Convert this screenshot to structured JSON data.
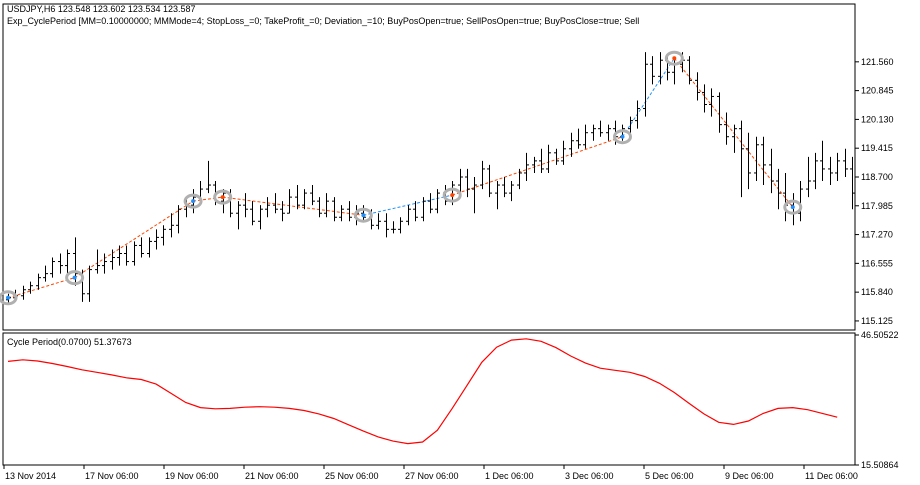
{
  "header": {
    "symbol_line": "USDJPY,H6  123.548 123.602 123.534 123.587",
    "expert_line": "Exp_CyclePeriod [MM=0.10000000; MMMode=4; StopLoss_=0; TakeProfit_=0; Deviation_=10; BuyPosOpen=true; SellPosOpen=true; BuyPosClose=true; Sell"
  },
  "indicator": {
    "label": "Cycle Period(0.0700) 51.37673"
  },
  "colors": {
    "candle": "#000000",
    "cycle_line": "#ff0000",
    "trade_sell_line": "#ff4500",
    "trade_buy_line": "#1e90ff",
    "marker_ring": "#b0b0b0",
    "frame": "#000000"
  },
  "chart_data": [
    {
      "type": "candlestick",
      "title": "USDJPY,H6",
      "ylim": [
        114.9,
        122.4
      ],
      "y_tick_labels": [
        "121.560",
        "120.845",
        "120.130",
        "119.415",
        "118.700",
        "117.985",
        "117.270",
        "116.555",
        "115.840",
        "115.125"
      ],
      "y_ticks": [
        121.56,
        120.845,
        120.13,
        119.415,
        118.7,
        117.985,
        117.27,
        116.555,
        115.84,
        115.125
      ],
      "x_tick_labels": [
        "13 Nov 2014",
        "17 Nov 06:00",
        "19 Nov 06:00",
        "21 Nov 06:00",
        "25 Nov 06:00",
        "27 Nov 06:00",
        "1 Dec 06:00",
        "3 Dec 06:00",
        "5 Dec 06:00",
        "9 Dec 06:00",
        "11 Dec 06:00"
      ],
      "bars": [
        [
          115.65,
          115.8,
          115.55,
          115.7
        ],
        [
          115.7,
          115.9,
          115.6,
          115.75
        ],
        [
          115.75,
          116.0,
          115.65,
          115.9
        ],
        [
          115.9,
          116.1,
          115.8,
          116.0
        ],
        [
          116.0,
          116.3,
          115.9,
          116.2
        ],
        [
          116.2,
          116.5,
          116.1,
          116.3
        ],
        [
          116.3,
          116.7,
          116.2,
          116.6
        ],
        [
          116.6,
          116.8,
          116.3,
          116.5
        ],
        [
          116.5,
          116.9,
          116.2,
          116.8
        ],
        [
          116.8,
          117.2,
          116.0,
          116.3
        ],
        [
          116.3,
          116.4,
          115.6,
          115.8
        ],
        [
          115.8,
          116.5,
          115.6,
          116.4
        ],
        [
          116.4,
          116.9,
          116.3,
          116.5
        ],
        [
          116.5,
          116.8,
          116.3,
          116.6
        ],
        [
          116.6,
          116.9,
          116.4,
          116.7
        ],
        [
          116.7,
          117.0,
          116.5,
          116.8
        ],
        [
          116.8,
          117.0,
          116.5,
          116.6
        ],
        [
          116.6,
          117.1,
          116.5,
          117.0
        ],
        [
          117.0,
          117.2,
          116.7,
          116.8
        ],
        [
          116.8,
          117.2,
          116.7,
          117.1
        ],
        [
          117.1,
          117.4,
          116.9,
          117.2
        ],
        [
          117.2,
          117.5,
          117.0,
          117.4
        ],
        [
          117.4,
          117.8,
          117.2,
          117.5
        ],
        [
          117.5,
          118.0,
          117.3,
          117.9
        ],
        [
          117.9,
          118.2,
          117.7,
          118.0
        ],
        [
          118.0,
          118.4,
          117.8,
          118.2
        ],
        [
          118.2,
          118.6,
          118.0,
          118.4
        ],
        [
          118.4,
          119.1,
          118.3,
          118.5
        ],
        [
          118.5,
          118.6,
          118.0,
          118.1
        ],
        [
          118.1,
          118.4,
          117.8,
          118.3
        ],
        [
          118.3,
          118.4,
          117.7,
          117.8
        ],
        [
          117.8,
          118.1,
          117.4,
          118.0
        ],
        [
          118.0,
          118.3,
          117.7,
          117.9
        ],
        [
          117.9,
          118.1,
          117.5,
          117.6
        ],
        [
          117.6,
          118.0,
          117.4,
          117.9
        ],
        [
          117.9,
          118.2,
          117.7,
          118.0
        ],
        [
          118.0,
          118.3,
          117.8,
          117.9
        ],
        [
          117.9,
          118.1,
          117.6,
          117.8
        ],
        [
          117.8,
          118.4,
          117.8,
          118.2
        ],
        [
          118.2,
          118.5,
          117.9,
          118.0
        ],
        [
          118.0,
          118.4,
          117.9,
          118.3
        ],
        [
          118.3,
          118.5,
          118.0,
          118.1
        ],
        [
          118.1,
          118.2,
          117.7,
          117.8
        ],
        [
          117.8,
          118.3,
          117.7,
          118.1
        ],
        [
          118.1,
          118.2,
          117.6,
          117.7
        ],
        [
          117.7,
          118.0,
          117.6,
          117.9
        ],
        [
          117.9,
          118.1,
          117.6,
          117.7
        ],
        [
          117.7,
          118.0,
          117.5,
          117.8
        ],
        [
          117.8,
          118.0,
          117.6,
          117.7
        ],
        [
          117.7,
          117.9,
          117.4,
          117.5
        ],
        [
          117.5,
          117.8,
          117.4,
          117.6
        ],
        [
          117.6,
          117.8,
          117.2,
          117.4
        ],
        [
          117.4,
          117.6,
          117.3,
          117.4
        ],
        [
          117.4,
          117.7,
          117.3,
          117.6
        ],
        [
          117.6,
          118.0,
          117.5,
          117.9
        ],
        [
          117.9,
          118.1,
          117.6,
          117.7
        ],
        [
          117.7,
          118.2,
          117.6,
          118.1
        ],
        [
          118.1,
          118.3,
          117.8,
          117.9
        ],
        [
          117.9,
          118.4,
          117.8,
          118.3
        ],
        [
          118.3,
          118.5,
          118.0,
          118.1
        ],
        [
          118.1,
          118.6,
          118.0,
          118.5
        ],
        [
          118.5,
          118.9,
          118.3,
          118.7
        ],
        [
          118.7,
          118.9,
          118.2,
          118.4
        ],
        [
          118.4,
          118.7,
          117.8,
          118.5
        ],
        [
          118.5,
          119.1,
          118.4,
          118.9
        ],
        [
          118.9,
          119.0,
          118.2,
          118.3
        ],
        [
          118.3,
          118.6,
          117.9,
          118.5
        ],
        [
          118.5,
          118.7,
          118.2,
          118.3
        ],
        [
          118.3,
          118.6,
          118.1,
          118.5
        ],
        [
          118.5,
          118.9,
          118.4,
          118.8
        ],
        [
          118.8,
          119.3,
          118.6,
          119.0
        ],
        [
          119.0,
          119.2,
          118.8,
          119.1
        ],
        [
          119.1,
          119.4,
          118.8,
          118.9
        ],
        [
          118.9,
          119.5,
          118.8,
          119.3
        ],
        [
          119.3,
          119.4,
          119.0,
          119.1
        ],
        [
          119.1,
          119.6,
          119.0,
          119.4
        ],
        [
          119.4,
          119.8,
          119.2,
          119.6
        ],
        [
          119.6,
          119.9,
          119.4,
          119.5
        ],
        [
          119.5,
          120.0,
          119.4,
          119.8
        ],
        [
          119.8,
          120.0,
          119.6,
          119.9
        ],
        [
          119.9,
          120.1,
          119.7,
          119.8
        ],
        [
          119.8,
          120.0,
          119.6,
          119.9
        ],
        [
          119.9,
          120.1,
          119.5,
          119.7
        ],
        [
          119.7,
          120.0,
          119.6,
          119.9
        ],
        [
          119.9,
          120.2,
          119.8,
          120.1
        ],
        [
          120.1,
          120.6,
          119.9,
          120.4
        ],
        [
          120.4,
          121.8,
          120.2,
          121.5
        ],
        [
          121.5,
          121.7,
          121.0,
          121.2
        ],
        [
          121.2,
          121.8,
          121.0,
          121.6
        ],
        [
          121.6,
          121.7,
          121.1,
          121.3
        ],
        [
          121.3,
          121.6,
          121.0,
          121.5
        ],
        [
          121.5,
          121.8,
          121.3,
          121.6
        ],
        [
          121.6,
          121.7,
          121.0,
          121.1
        ],
        [
          121.1,
          121.3,
          120.6,
          120.8
        ],
        [
          120.8,
          121.0,
          120.3,
          120.5
        ],
        [
          120.5,
          120.9,
          120.2,
          120.7
        ],
        [
          120.7,
          120.8,
          119.8,
          120.0
        ],
        [
          120.0,
          120.3,
          119.5,
          119.7
        ],
        [
          119.7,
          120.0,
          119.3,
          119.9
        ],
        [
          119.9,
          120.1,
          118.2,
          119.4
        ],
        [
          119.4,
          119.8,
          118.4,
          118.8
        ],
        [
          118.8,
          119.7,
          118.6,
          119.5
        ],
        [
          119.5,
          119.7,
          118.5,
          119.0
        ],
        [
          119.0,
          119.4,
          118.3,
          118.6
        ],
        [
          118.6,
          118.9,
          117.9,
          118.3
        ],
        [
          118.3,
          118.8,
          117.6,
          118.0
        ],
        [
          118.0,
          118.3,
          117.5,
          117.8
        ],
        [
          117.8,
          118.6,
          117.6,
          118.4
        ],
        [
          118.4,
          119.2,
          118.2,
          118.6
        ],
        [
          118.6,
          119.3,
          118.4,
          119.1
        ],
        [
          119.1,
          119.6,
          118.6,
          118.9
        ],
        [
          118.9,
          119.2,
          118.5,
          118.8
        ],
        [
          118.8,
          119.3,
          118.6,
          119.1
        ],
        [
          119.1,
          119.4,
          118.7,
          118.9
        ],
        [
          118.9,
          119.2,
          117.9,
          118.3
        ]
      ],
      "trade_markers": [
        {
          "bar": 0,
          "price": 115.7,
          "kind": "buy"
        },
        {
          "bar": 9,
          "price": 116.2,
          "kind": "buy"
        },
        {
          "bar": 25,
          "price": 118.1,
          "kind": "buy"
        },
        {
          "bar": 29,
          "price": 118.2,
          "kind": "sell"
        },
        {
          "bar": 48,
          "price": 117.75,
          "kind": "buy"
        },
        {
          "bar": 60,
          "price": 118.25,
          "kind": "sell"
        },
        {
          "bar": 83,
          "price": 119.7,
          "kind": "buy"
        },
        {
          "bar": 90,
          "price": 121.65,
          "kind": "sell"
        },
        {
          "bar": 106,
          "price": 117.95,
          "kind": "buy"
        }
      ],
      "trade_lines": [
        {
          "from": 0,
          "to": 1,
          "kind": "sell"
        },
        {
          "from": 1,
          "to": 2,
          "kind": "sell"
        },
        {
          "from": 2,
          "to": 3,
          "kind": "sell"
        },
        {
          "from": 3,
          "to": 4,
          "kind": "sell"
        },
        {
          "from": 4,
          "to": 5,
          "kind": "buy"
        },
        {
          "from": 5,
          "to": 6,
          "kind": "sell"
        },
        {
          "from": 6,
          "to": 7,
          "kind": "buy"
        },
        {
          "from": 7,
          "to": 8,
          "kind": "sell"
        }
      ]
    },
    {
      "type": "line",
      "title": "Cycle Period(0.0700) 51.37673",
      "ylim": [
        15.50864,
        46.50522
      ],
      "y_tick_labels": [
        "46.50522",
        "15.50864"
      ],
      "series": [
        {
          "name": "Cycle Period",
          "x": [
            0,
            2,
            4,
            6,
            8,
            10,
            12,
            14,
            16,
            18,
            20,
            22,
            24,
            26,
            28,
            30,
            32,
            34,
            36,
            38,
            40,
            42,
            44,
            46,
            48,
            50,
            52,
            54,
            56,
            58,
            60,
            62,
            64,
            66,
            68,
            70,
            72,
            74,
            76,
            78,
            80,
            82,
            84,
            86,
            88,
            90,
            92,
            94,
            96,
            98,
            100,
            102,
            104,
            106,
            108,
            110,
            112
          ],
          "values": [
            40.2,
            40.6,
            40.3,
            39.7,
            39.0,
            38.2,
            37.6,
            37.0,
            36.3,
            35.9,
            34.8,
            32.6,
            30.4,
            29.2,
            28.9,
            29.0,
            29.3,
            29.4,
            29.3,
            29.0,
            28.5,
            27.7,
            26.6,
            25.1,
            23.6,
            22.2,
            21.2,
            20.6,
            21.0,
            23.8,
            29.0,
            34.5,
            40.0,
            43.6,
            45.3,
            45.6,
            45.0,
            43.5,
            41.5,
            39.8,
            38.6,
            38.1,
            37.6,
            36.6,
            35.0,
            32.8,
            30.2,
            27.7,
            25.7,
            25.2,
            26.0,
            27.8,
            29.0,
            29.2,
            28.7,
            27.8,
            26.9
          ]
        }
      ]
    }
  ]
}
